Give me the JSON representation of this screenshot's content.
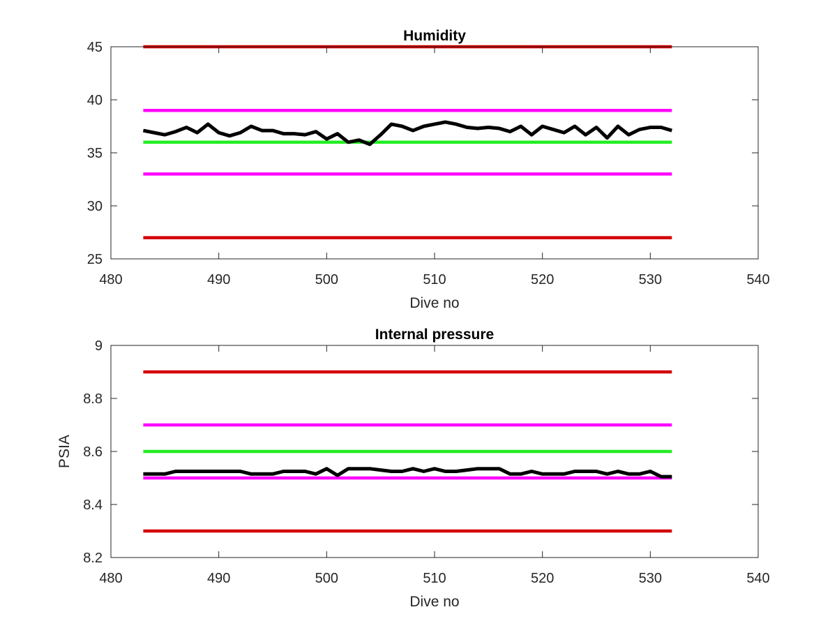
{
  "chart_data": [
    {
      "type": "line",
      "title": "Humidity",
      "xlabel": "Dive no",
      "ylabel": "",
      "xlim": [
        480,
        540
      ],
      "ylim": [
        25,
        45
      ],
      "xticks": [
        "480",
        "490",
        "500",
        "510",
        "520",
        "530",
        "540"
      ],
      "yticks": [
        "25",
        "30",
        "35",
        "40",
        "45"
      ],
      "grid": false,
      "series": [
        {
          "color": "#d40000",
          "x": [
            483,
            532
          ],
          "y": [
            45,
            45
          ]
        },
        {
          "color": "#ff00ff",
          "x": [
            483,
            532
          ],
          "y": [
            39,
            39
          ]
        },
        {
          "color": "#22ee22",
          "x": [
            483,
            532
          ],
          "y": [
            36,
            36
          ]
        },
        {
          "color": "#ff00ff",
          "x": [
            483,
            532
          ],
          "y": [
            33,
            33
          ]
        },
        {
          "color": "#d40000",
          "x": [
            483,
            532
          ],
          "y": [
            27,
            27
          ]
        },
        {
          "color": "#000000",
          "x": [
            483,
            484,
            485,
            486,
            487,
            488,
            489,
            490,
            491,
            492,
            493,
            494,
            495,
            496,
            497,
            498,
            499,
            500,
            501,
            502,
            503,
            504,
            505,
            506,
            507,
            508,
            509,
            510,
            511,
            512,
            513,
            514,
            515,
            516,
            517,
            518,
            519,
            520,
            521,
            522,
            523,
            524,
            525,
            526,
            527,
            528,
            529,
            530,
            531,
            532
          ],
          "y": [
            37.1,
            36.9,
            36.7,
            37.0,
            37.4,
            36.9,
            37.7,
            36.9,
            36.6,
            36.9,
            37.5,
            37.1,
            37.1,
            36.8,
            36.8,
            36.7,
            37.0,
            36.3,
            36.8,
            36.0,
            36.2,
            35.8,
            36.7,
            37.7,
            37.5,
            37.1,
            37.5,
            37.7,
            37.9,
            37.7,
            37.4,
            37.3,
            37.4,
            37.3,
            37.0,
            37.5,
            36.7,
            37.5,
            37.2,
            36.9,
            37.5,
            36.7,
            37.4,
            36.4,
            37.5,
            36.7,
            37.2,
            37.4,
            37.4,
            37.1
          ]
        }
      ]
    },
    {
      "type": "line",
      "title": "Internal pressure",
      "xlabel": "Dive no",
      "ylabel": "PSIA",
      "xlim": [
        480,
        540
      ],
      "ylim": [
        8.2,
        9
      ],
      "xticks": [
        "480",
        "490",
        "500",
        "510",
        "520",
        "530",
        "540"
      ],
      "yticks": [
        "8.2",
        "8.4",
        "8.6",
        "8.8",
        "9"
      ],
      "grid": false,
      "series": [
        {
          "color": "#d40000",
          "x": [
            483,
            532
          ],
          "y": [
            8.9,
            8.9
          ]
        },
        {
          "color": "#ff00ff",
          "x": [
            483,
            532
          ],
          "y": [
            8.7,
            8.7
          ]
        },
        {
          "color": "#22ee22",
          "x": [
            483,
            532
          ],
          "y": [
            8.6,
            8.6
          ]
        },
        {
          "color": "#ff00ff",
          "x": [
            483,
            532
          ],
          "y": [
            8.5,
            8.5
          ]
        },
        {
          "color": "#d40000",
          "x": [
            483,
            532
          ],
          "y": [
            8.3,
            8.3
          ]
        },
        {
          "color": "#000000",
          "x": [
            483,
            484,
            485,
            486,
            487,
            488,
            489,
            490,
            491,
            492,
            493,
            494,
            495,
            496,
            497,
            498,
            499,
            500,
            501,
            502,
            503,
            504,
            505,
            506,
            507,
            508,
            509,
            510,
            511,
            512,
            513,
            514,
            515,
            516,
            517,
            518,
            519,
            520,
            521,
            522,
            523,
            524,
            525,
            526,
            527,
            528,
            529,
            530,
            531,
            532
          ],
          "y": [
            8.515,
            8.515,
            8.515,
            8.525,
            8.525,
            8.525,
            8.525,
            8.525,
            8.525,
            8.525,
            8.515,
            8.515,
            8.515,
            8.525,
            8.525,
            8.525,
            8.515,
            8.535,
            8.51,
            8.535,
            8.535,
            8.535,
            8.53,
            8.525,
            8.525,
            8.535,
            8.525,
            8.535,
            8.525,
            8.525,
            8.53,
            8.535,
            8.535,
            8.535,
            8.515,
            8.515,
            8.525,
            8.515,
            8.515,
            8.515,
            8.525,
            8.525,
            8.525,
            8.515,
            8.525,
            8.515,
            8.515,
            8.525,
            8.505,
            8.505
          ]
        }
      ]
    }
  ]
}
